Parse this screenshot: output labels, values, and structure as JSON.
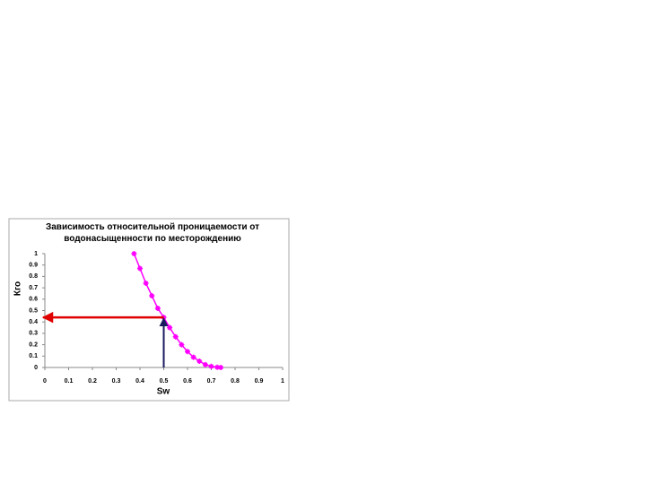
{
  "chart_data": {
    "type": "line",
    "title": "Зависимость относительной проницаемости от водонасыщенности по месторождению",
    "xlabel": "Sw",
    "ylabel": "Кго",
    "x": [
      0.375,
      0.4,
      0.425,
      0.45,
      0.475,
      0.5,
      0.525,
      0.55,
      0.575,
      0.6,
      0.625,
      0.65,
      0.675,
      0.7,
      0.725,
      0.74
    ],
    "series": [
      {
        "name": "Кго",
        "color": "#ff00ff",
        "values": [
          1,
          0.87,
          0.74,
          0.63,
          0.52,
          0.44,
          0.35,
          0.27,
          0.2,
          0.14,
          0.09,
          0.055,
          0.025,
          0.01,
          0.002,
          0
        ]
      }
    ],
    "xlim": [
      0,
      1
    ],
    "xticks": [
      0,
      0.1,
      0.2,
      0.3,
      0.4,
      0.5,
      0.6,
      0.7,
      0.8,
      0.9,
      1
    ],
    "ylim": [
      0,
      1
    ],
    "yticks": [
      0,
      0.1,
      0.2,
      0.3,
      0.4,
      0.5,
      0.6,
      0.7,
      0.8,
      0.9,
      1
    ],
    "grid": false,
    "legend": false,
    "lookup_point": {
      "x": 0.5,
      "y": 0.44,
      "horizontal_color": "#e00000",
      "vertical_color": "#1a1a60"
    }
  }
}
